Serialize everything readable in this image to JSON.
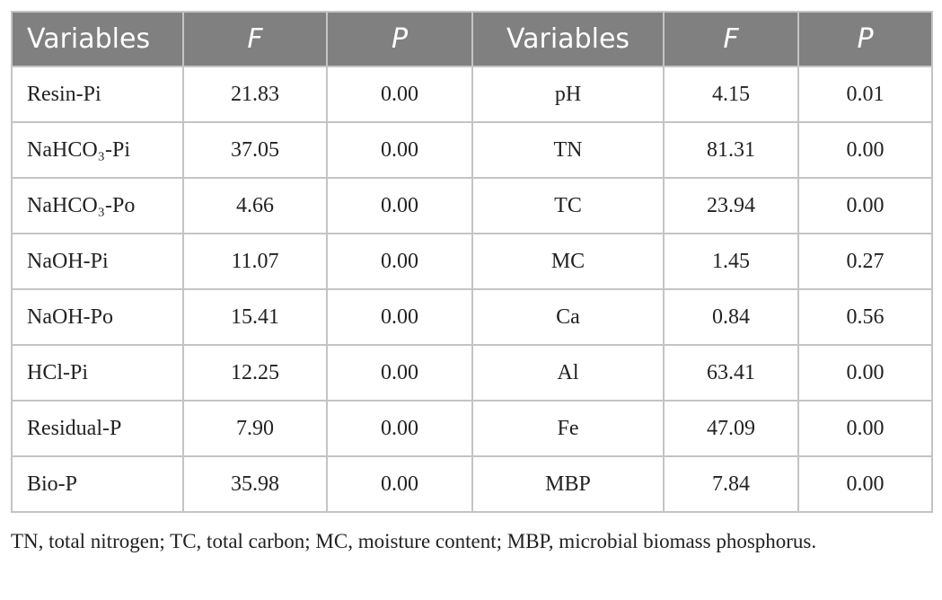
{
  "table": {
    "header": [
      "Variables",
      "F",
      "P",
      "Variables",
      "F",
      "P"
    ],
    "rows": [
      [
        "Resin-Pi",
        "21.83",
        "0.00",
        "pH",
        "4.15",
        "0.01"
      ],
      [
        "NaHCO₃-Pi",
        "37.05",
        "0.00",
        "TN",
        "81.31",
        "0.00"
      ],
      [
        "NaHCO₃-Po",
        "4.66",
        "0.00",
        "TC",
        "23.94",
        "0.00"
      ],
      [
        "NaOH-Pi",
        "11.07",
        "0.00",
        "MC",
        "1.45",
        "0.27"
      ],
      [
        "NaOH-Po",
        "15.41",
        "0.00",
        "Ca",
        "0.84",
        "0.56"
      ],
      [
        "HCl-Pi",
        "12.25",
        "0.00",
        "Al",
        "63.41",
        "0.00"
      ],
      [
        "Residual-P",
        "7.90",
        "0.00",
        "Fe",
        "47.09",
        "0.00"
      ],
      [
        "Bio-P",
        "35.98",
        "0.00",
        "MBP",
        "7.84",
        "0.00"
      ]
    ]
  },
  "footnote": "TN, total nitrogen; TC, total carbon; MC, moisture content; MBP, microbial biomass phosphorus."
}
